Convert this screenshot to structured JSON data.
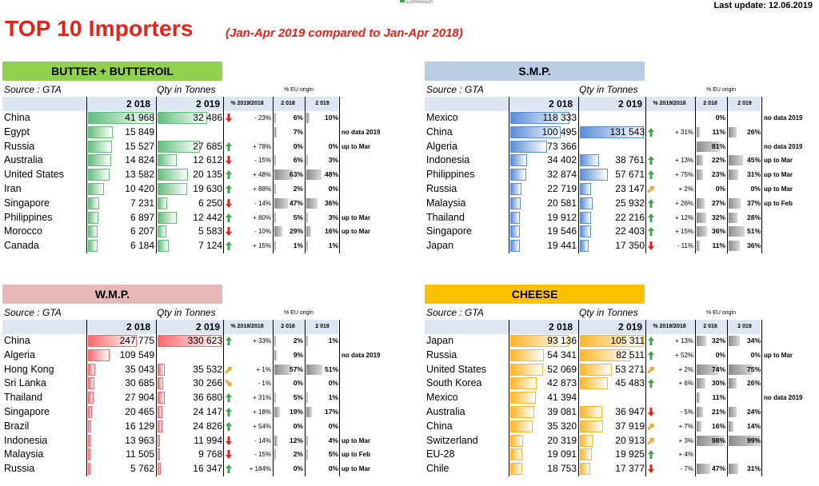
{
  "logo_text": "Commission",
  "last_update": "Last update: 12.06.2019",
  "title": "TOP 10 Importers",
  "subtitle": "(Jan-Apr 2019 compared to Jan-Apr 2018)",
  "labels": {
    "source": "Source : GTA",
    "qty": "Qty in Tonnes",
    "eu_origin": "% EU origin",
    "y2018": "2 018",
    "y2019": "2 019",
    "pct_change": "% 2019/2018",
    "eu2018": "2 018",
    "eu2019": "2 019"
  },
  "panels": [
    {
      "name": "BUTTER + BUTTEROIL",
      "header_color": "#92d050",
      "bar_color": "#63be7b",
      "max": 41968,
      "rows": [
        {
          "country": "China",
          "v2018": "41 968",
          "v2019": "32 486",
          "n2018": 41968,
          "n2019": 32486,
          "change": "- 23%",
          "dir": "down",
          "eu2018": "6%",
          "eu2019": "10%",
          "e18": 6,
          "e19": 10,
          "note": ""
        },
        {
          "country": "Egypt",
          "v2018": "15 849",
          "v2019": "",
          "n2018": 15849,
          "n2019": 0,
          "change": "",
          "dir": "",
          "eu2018": "7%",
          "eu2019": "",
          "e18": 7,
          "e19": 0,
          "note": "no data 2019"
        },
        {
          "country": "Russia",
          "v2018": "15 527",
          "v2019": "27 685",
          "n2018": 15527,
          "n2019": 27685,
          "change": "+ 78%",
          "dir": "up",
          "eu2018": "0%",
          "eu2019": "0%",
          "e18": 0,
          "e19": 0,
          "note": "up to Mar"
        },
        {
          "country": "Australia",
          "v2018": "14 824",
          "v2019": "12 612",
          "n2018": 14824,
          "n2019": 12612,
          "change": "- 15%",
          "dir": "down",
          "eu2018": "6%",
          "eu2019": "3%",
          "e18": 6,
          "e19": 3,
          "note": ""
        },
        {
          "country": "United States",
          "v2018": "13 582",
          "v2019": "20 135",
          "n2018": 13582,
          "n2019": 20135,
          "change": "+ 48%",
          "dir": "up",
          "eu2018": "63%",
          "eu2019": "48%",
          "e18": 63,
          "e19": 48,
          "note": ""
        },
        {
          "country": "Iran",
          "v2018": "10 420",
          "v2019": "19 630",
          "n2018": 10420,
          "n2019": 19630,
          "change": "+ 88%",
          "dir": "up",
          "eu2018": "2%",
          "eu2019": "0%",
          "e18": 2,
          "e19": 0,
          "note": ""
        },
        {
          "country": "Singapore",
          "v2018": "7 231",
          "v2019": "6 250",
          "n2018": 7231,
          "n2019": 6250,
          "change": "- 14%",
          "dir": "down",
          "eu2018": "47%",
          "eu2019": "36%",
          "e18": 47,
          "e19": 36,
          "note": ""
        },
        {
          "country": "Philippines",
          "v2018": "6 897",
          "v2019": "12 442",
          "n2018": 6897,
          "n2019": 12442,
          "change": "+ 80%",
          "dir": "up",
          "eu2018": "5%",
          "eu2019": "3%",
          "e18": 5,
          "e19": 3,
          "note": "up to Mar"
        },
        {
          "country": "Morocco",
          "v2018": "6 207",
          "v2019": "5 583",
          "n2018": 6207,
          "n2019": 5583,
          "change": "- 10%",
          "dir": "down",
          "eu2018": "29%",
          "eu2019": "16%",
          "e18": 29,
          "e19": 16,
          "note": "up to Mar"
        },
        {
          "country": "Canada",
          "v2018": "6 184",
          "v2019": "7 124",
          "n2018": 6184,
          "n2019": 7124,
          "change": "+ 15%",
          "dir": "up",
          "eu2018": "1%",
          "eu2019": "1%",
          "e18": 1,
          "e19": 1,
          "note": ""
        }
      ]
    },
    {
      "name": "S.M.P.",
      "header_color": "#b8cce4",
      "bar_color": "#5b8ed6",
      "max": 131543,
      "rows": [
        {
          "country": "Mexico",
          "v2018": "118 333",
          "v2019": "",
          "n2018": 118333,
          "n2019": 0,
          "change": "",
          "dir": "",
          "eu2018": "0%",
          "eu2019": "",
          "e18": 0,
          "e19": 0,
          "note": "no data 2019"
        },
        {
          "country": "China",
          "v2018": "100 495",
          "v2019": "131 543",
          "n2018": 100495,
          "n2019": 131543,
          "change": "+ 31%",
          "dir": "up",
          "eu2018": "11%",
          "eu2019": "26%",
          "e18": 11,
          "e19": 26,
          "note": ""
        },
        {
          "country": "Algeria",
          "v2018": "73 366",
          "v2019": "",
          "n2018": 73366,
          "n2019": 0,
          "change": "",
          "dir": "",
          "eu2018": "81%",
          "eu2019": "",
          "e18": 81,
          "e19": 0,
          "note": "no data 2019"
        },
        {
          "country": "Indonesia",
          "v2018": "34 402",
          "v2019": "38 761",
          "n2018": 34402,
          "n2019": 38761,
          "change": "+ 13%",
          "dir": "up",
          "eu2018": "22%",
          "eu2019": "45%",
          "e18": 22,
          "e19": 45,
          "note": "up to Mar"
        },
        {
          "country": "Philippines",
          "v2018": "32 874",
          "v2019": "57 671",
          "n2018": 32874,
          "n2019": 57671,
          "change": "+ 75%",
          "dir": "up",
          "eu2018": "23%",
          "eu2019": "31%",
          "e18": 23,
          "e19": 31,
          "note": "up to Mar"
        },
        {
          "country": "Russia",
          "v2018": "22 719",
          "v2019": "23 147",
          "n2018": 22719,
          "n2019": 23147,
          "change": "+ 2%",
          "dir": "side-up",
          "eu2018": "0%",
          "eu2019": "0%",
          "e18": 0,
          "e19": 0,
          "note": "up to Mar"
        },
        {
          "country": "Malaysia",
          "v2018": "20 581",
          "v2019": "25 932",
          "n2018": 20581,
          "n2019": 25932,
          "change": "+ 26%",
          "dir": "up",
          "eu2018": "27%",
          "eu2019": "37%",
          "e18": 27,
          "e19": 37,
          "note": "up to Feb"
        },
        {
          "country": "Thailand",
          "v2018": "19 912",
          "v2019": "22 216",
          "n2018": 19912,
          "n2019": 22216,
          "change": "+ 12%",
          "dir": "up",
          "eu2018": "32%",
          "eu2019": "28%",
          "e18": 32,
          "e19": 28,
          "note": ""
        },
        {
          "country": "Singapore",
          "v2018": "19 546",
          "v2019": "22 403",
          "n2018": 19546,
          "n2019": 22403,
          "change": "+ 15%",
          "dir": "up",
          "eu2018": "36%",
          "eu2019": "51%",
          "e18": 36,
          "e19": 51,
          "note": ""
        },
        {
          "country": "Japan",
          "v2018": "19 441",
          "v2019": "17 350",
          "n2018": 19441,
          "n2019": 17350,
          "change": "- 11%",
          "dir": "down",
          "eu2018": "11%",
          "eu2019": "36%",
          "e18": 11,
          "e19": 36,
          "note": ""
        }
      ]
    },
    {
      "name": "W.M.P.",
      "header_color": "#e6b9b8",
      "bar_color": "#f8696b",
      "max": 330623,
      "rows": [
        {
          "country": "China",
          "v2018": "247 775",
          "v2019": "330 623",
          "n2018": 247775,
          "n2019": 330623,
          "change": "+ 33%",
          "dir": "up",
          "eu2018": "2%",
          "eu2019": "1%",
          "e18": 2,
          "e19": 1,
          "note": ""
        },
        {
          "country": "Algeria",
          "v2018": "109 549",
          "v2019": "",
          "n2018": 109549,
          "n2019": 0,
          "change": "",
          "dir": "",
          "eu2018": "9%",
          "eu2019": "",
          "e18": 9,
          "e19": 0,
          "note": "no data 2019"
        },
        {
          "country": "Hong Kong",
          "v2018": "35 043",
          "v2019": "35 532",
          "n2018": 35043,
          "n2019": 35532,
          "change": "+ 1%",
          "dir": "side-up",
          "eu2018": "57%",
          "eu2019": "51%",
          "e18": 57,
          "e19": 51,
          "note": ""
        },
        {
          "country": "Sri Lanka",
          "v2018": "30 685",
          "v2019": "30 266",
          "n2018": 30685,
          "n2019": 30266,
          "change": "- 1%",
          "dir": "side-down",
          "eu2018": "0%",
          "eu2019": "0%",
          "e18": 0,
          "e19": 0,
          "note": ""
        },
        {
          "country": "Thailand",
          "v2018": "27 904",
          "v2019": "36 680",
          "n2018": 27904,
          "n2019": 36680,
          "change": "+ 31%",
          "dir": "up",
          "eu2018": "5%",
          "eu2019": "1%",
          "e18": 5,
          "e19": 1,
          "note": ""
        },
        {
          "country": "Singapore",
          "v2018": "20 465",
          "v2019": "24 147",
          "n2018": 20465,
          "n2019": 24147,
          "change": "+ 18%",
          "dir": "up",
          "eu2018": "19%",
          "eu2019": "17%",
          "e18": 19,
          "e19": 17,
          "note": ""
        },
        {
          "country": "Brazil",
          "v2018": "16 129",
          "v2019": "24 826",
          "n2018": 16129,
          "n2019": 24826,
          "change": "+ 54%",
          "dir": "up",
          "eu2018": "0%",
          "eu2019": "0%",
          "e18": 0,
          "e19": 0,
          "note": ""
        },
        {
          "country": "Indonesia",
          "v2018": "13 963",
          "v2019": "11 994",
          "n2018": 13963,
          "n2019": 11994,
          "change": "- 14%",
          "dir": "down",
          "eu2018": "12%",
          "eu2019": "4%",
          "e18": 12,
          "e19": 4,
          "note": "up to Mar"
        },
        {
          "country": "Malaysia",
          "v2018": "11 505",
          "v2019": "9 768",
          "n2018": 11505,
          "n2019": 9768,
          "change": "- 15%",
          "dir": "down",
          "eu2018": "2%",
          "eu2019": "5%",
          "e18": 2,
          "e19": 5,
          "note": "up to Feb"
        },
        {
          "country": "Russia",
          "v2018": "5 762",
          "v2019": "16 347",
          "n2018": 5762,
          "n2019": 16347,
          "change": "+ 184%",
          "dir": "up",
          "eu2018": "0%",
          "eu2019": "0%",
          "e18": 0,
          "e19": 0,
          "note": "up to Mar"
        }
      ]
    },
    {
      "name": "CHEESE",
      "header_color": "#ffc000",
      "bar_color": "#ffb628",
      "max": 105311,
      "rows": [
        {
          "country": "Japan",
          "v2018": "93 136",
          "v2019": "105 311",
          "n2018": 93136,
          "n2019": 105311,
          "change": "+ 13%",
          "dir": "up",
          "eu2018": "32%",
          "eu2019": "34%",
          "e18": 32,
          "e19": 34,
          "note": ""
        },
        {
          "country": "Russia",
          "v2018": "54 341",
          "v2019": "82 511",
          "n2018": 54341,
          "n2019": 82511,
          "change": "+ 52%",
          "dir": "up",
          "eu2018": "0%",
          "eu2019": "0%",
          "e18": 0,
          "e19": 0,
          "note": "up to Mar"
        },
        {
          "country": "United States",
          "v2018": "52 069",
          "v2019": "53 271",
          "n2018": 52069,
          "n2019": 53271,
          "change": "+ 2%",
          "dir": "side-up",
          "eu2018": "74%",
          "eu2019": "75%",
          "e18": 74,
          "e19": 75,
          "note": ""
        },
        {
          "country": "South Korea",
          "v2018": "42 873",
          "v2019": "45 483",
          "n2018": 42873,
          "n2019": 45483,
          "change": "+ 6%",
          "dir": "up",
          "eu2018": "30%",
          "eu2019": "26%",
          "e18": 30,
          "e19": 26,
          "note": ""
        },
        {
          "country": "Mexico",
          "v2018": "41 394",
          "v2019": "",
          "n2018": 41394,
          "n2019": 0,
          "change": "",
          "dir": "",
          "eu2018": "11%",
          "eu2019": "",
          "e18": 11,
          "e19": 0,
          "note": "no data 2019"
        },
        {
          "country": "Australia",
          "v2018": "39 081",
          "v2019": "36 947",
          "n2018": 39081,
          "n2019": 36947,
          "change": "- 5%",
          "dir": "down",
          "eu2018": "21%",
          "eu2019": "24%",
          "e18": 21,
          "e19": 24,
          "note": ""
        },
        {
          "country": "China",
          "v2018": "35 320",
          "v2019": "37 919",
          "n2018": 35320,
          "n2019": 37919,
          "change": "+ 7%",
          "dir": "side-up",
          "eu2018": "16%",
          "eu2019": "14%",
          "e18": 16,
          "e19": 14,
          "note": ""
        },
        {
          "country": "Switzerland",
          "v2018": "20 319",
          "v2019": "20 913",
          "n2018": 20319,
          "n2019": 20913,
          "change": "+ 3%",
          "dir": "side-up",
          "eu2018": "98%",
          "eu2019": "99%",
          "e18": 98,
          "e19": 99,
          "note": ""
        },
        {
          "country": "EU-28",
          "v2018": "19 091",
          "v2019": "19 925",
          "n2018": 19091,
          "n2019": 19925,
          "change": "+ 4%",
          "dir": "up",
          "eu2018": "",
          "eu2019": "",
          "e18": 0,
          "e19": 0,
          "note": ""
        },
        {
          "country": "Chile",
          "v2018": "18 753",
          "v2019": "17 377",
          "n2018": 18753,
          "n2019": 17377,
          "change": "- 7%",
          "dir": "down",
          "eu2018": "47%",
          "eu2019": "31%",
          "e18": 47,
          "e19": 31,
          "note": ""
        }
      ]
    }
  ]
}
